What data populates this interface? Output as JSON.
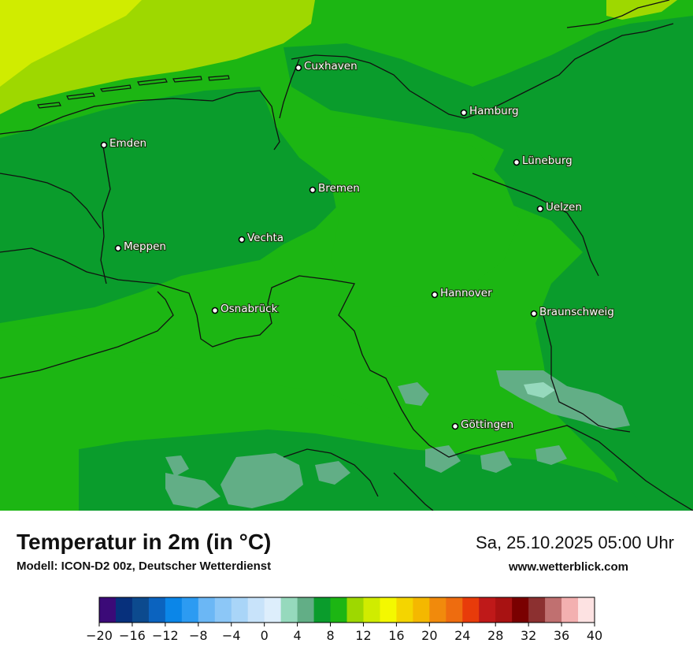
{
  "title": "Temperatur in 2m (in °C)",
  "model_info": "Modell: ICON-D2 00z, Deutscher Wetterdienst",
  "datetime": "Sa, 25.10.2025 05:00 Uhr",
  "website": "www.wetterblick.com",
  "cities": [
    {
      "name": "Cuxhaven"
    },
    {
      "name": "Hamburg"
    },
    {
      "name": "Emden"
    },
    {
      "name": "Lüneburg"
    },
    {
      "name": "Bremen"
    },
    {
      "name": "Uelzen"
    },
    {
      "name": "Vechta"
    },
    {
      "name": "Meppen"
    },
    {
      "name": "Hannover"
    },
    {
      "name": "Osnabrück"
    },
    {
      "name": "Braunschweig"
    },
    {
      "name": "Göttingen"
    }
  ],
  "legend": {
    "min": -20,
    "max": 40,
    "step": 2,
    "tick_labels": [
      "−20",
      "−16",
      "−12",
      "−8",
      "−4",
      "0",
      "4",
      "8",
      "12",
      "16",
      "20",
      "24",
      "28",
      "32",
      "36",
      "40"
    ],
    "colors": [
      "#3b0a78",
      "#07307c",
      "#0c4a8e",
      "#0b63bf",
      "#0b86e8",
      "#2c9bf2",
      "#6bb7f5",
      "#8cc7f7",
      "#a9d5f8",
      "#c8e3fa",
      "#ddeefc",
      "#96d9bd",
      "#62ae86",
      "#0a9c2c",
      "#1cb613",
      "#9ed800",
      "#d0ec00",
      "#f4f800",
      "#f4d500",
      "#f4b800",
      "#f18a0c",
      "#ee6c0f",
      "#e83b0a",
      "#bf1919",
      "#a81212",
      "#7a0000",
      "#8c3030",
      "#c07070",
      "#f3b0b0",
      "#fde2e2"
    ]
  }
}
